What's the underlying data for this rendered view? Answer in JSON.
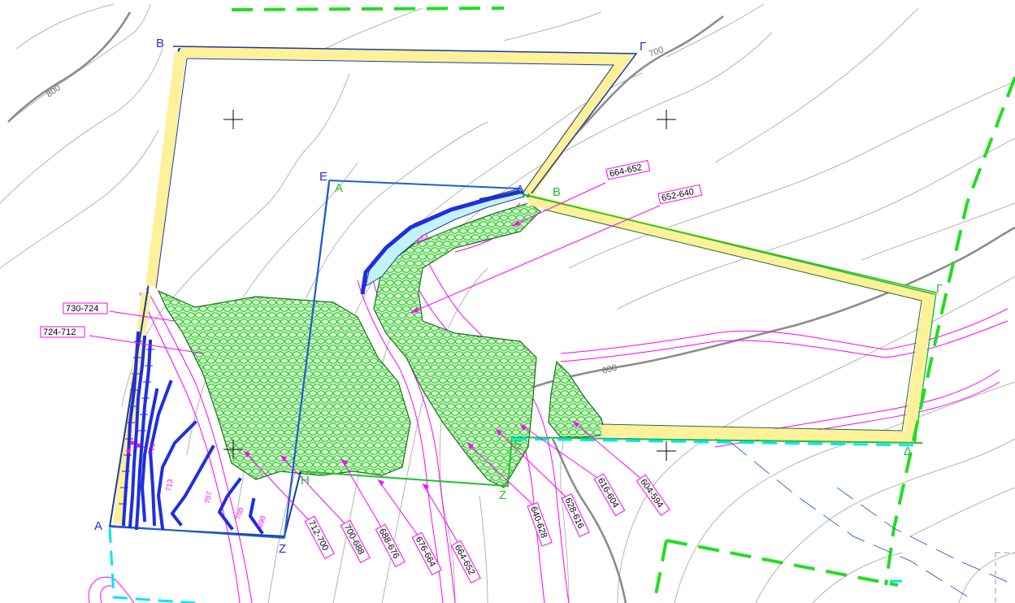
{
  "contour_labels": [
    {
      "id": "c800",
      "text": "800"
    },
    {
      "id": "c700",
      "text": "700"
    },
    {
      "id": "c600",
      "text": "600"
    }
  ],
  "blue_vertices": [
    {
      "id": "B",
      "text": "B"
    },
    {
      "id": "G",
      "text": "Γ"
    },
    {
      "id": "E",
      "text": "E"
    },
    {
      "id": "D",
      "text": "Δ"
    },
    {
      "id": "A",
      "text": "A"
    },
    {
      "id": "Z",
      "text": "Z"
    }
  ],
  "green_vertices": [
    {
      "id": "A2",
      "text": "A"
    },
    {
      "id": "B2",
      "text": "B"
    },
    {
      "id": "G2",
      "text": "Γ"
    },
    {
      "id": "D2",
      "text": "Δ"
    },
    {
      "id": "E2",
      "text": "E"
    },
    {
      "id": "Z2",
      "text": "Z"
    },
    {
      "id": "H2",
      "text": "H"
    }
  ],
  "elevation_ranges": [
    {
      "id": "r1",
      "text": "664-652"
    },
    {
      "id": "r2",
      "text": "652-640"
    },
    {
      "id": "r3",
      "text": "730-724"
    },
    {
      "id": "r4",
      "text": "724-712"
    },
    {
      "id": "r5",
      "text": "712-700"
    },
    {
      "id": "r6",
      "text": "700-688"
    },
    {
      "id": "r7",
      "text": "688-676"
    },
    {
      "id": "r8",
      "text": "676-664"
    },
    {
      "id": "r9",
      "text": "664-652"
    },
    {
      "id": "r10",
      "text": "640-628"
    },
    {
      "id": "r11",
      "text": "628-616"
    },
    {
      "id": "r12",
      "text": "616-604"
    },
    {
      "id": "r13",
      "text": "604-594"
    }
  ],
  "spot_heights": [
    {
      "id": "s1",
      "text": "664"
    },
    {
      "id": "s2",
      "text": "721"
    },
    {
      "id": "s3",
      "text": "713"
    },
    {
      "id": "s4",
      "text": "707"
    },
    {
      "id": "s5",
      "text": "700"
    },
    {
      "id": "s6",
      "text": "690"
    }
  ],
  "colors": {
    "boundary_blue": "#1a3a9a",
    "boundary_yellow": "#fff09a",
    "green_lines": "#22c22c",
    "fill_green": "#b8f5a8",
    "pink": "#ff00ff",
    "cyan": "#00e5ff"
  }
}
